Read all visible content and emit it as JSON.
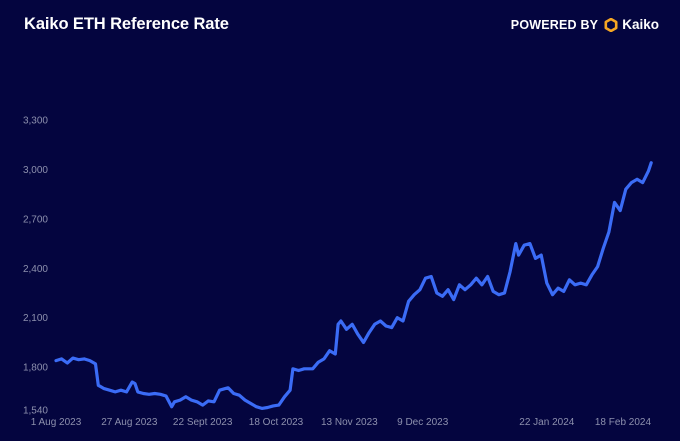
{
  "header": {
    "title": "Kaiko ETH Reference Rate",
    "powered_label": "POWERED BY",
    "brand_name": "Kaiko",
    "brand_color": "#f5a623"
  },
  "chart_data": {
    "type": "line",
    "title": "Kaiko ETH Reference Rate",
    "xlabel": "",
    "ylabel": "",
    "grid": false,
    "legend": "none",
    "line_color": "#3b6cf6",
    "ylim": [
      1540,
      3300
    ],
    "xlim": [
      "2023-08-01",
      "2024-02-29"
    ],
    "y_ticks": [
      1540,
      1800,
      2100,
      2400,
      2700,
      3000,
      3300
    ],
    "y_tick_labels": [
      "1,540",
      "1,800",
      "2,100",
      "2,400",
      "2,700",
      "3,000",
      "3,300"
    ],
    "x_ticks": [
      "2023-08-01",
      "2023-08-27",
      "2023-09-22",
      "2023-10-18",
      "2023-11-13",
      "2023-12-09",
      "2024-01-22",
      "2024-02-18"
    ],
    "x_tick_labels": [
      "1 Aug 2023",
      "27 Aug 2023",
      "22 Sept 2023",
      "18 Oct 2023",
      "13 Nov 2023",
      "9 Dec 2023",
      "22 Jan 2024",
      "18 Feb 2024"
    ],
    "series": [
      {
        "x": [
          "2023-08-01",
          "2023-08-03",
          "2023-08-05",
          "2023-08-07",
          "2023-08-09",
          "2023-08-11",
          "2023-08-13",
          "2023-08-15",
          "2023-08-16",
          "2023-08-17",
          "2023-08-18",
          "2023-08-20",
          "2023-08-22",
          "2023-08-24",
          "2023-08-26",
          "2023-08-28",
          "2023-08-29",
          "2023-08-30",
          "2023-09-01",
          "2023-09-03",
          "2023-09-05",
          "2023-09-07",
          "2023-09-09",
          "2023-09-11",
          "2023-09-12",
          "2023-09-14",
          "2023-09-16",
          "2023-09-18",
          "2023-09-20",
          "2023-09-22",
          "2023-09-24",
          "2023-09-26",
          "2023-09-28",
          "2023-09-30",
          "2023-10-01",
          "2023-10-03",
          "2023-10-05",
          "2023-10-07",
          "2023-10-09",
          "2023-10-11",
          "2023-10-13",
          "2023-10-15",
          "2023-10-17",
          "2023-10-19",
          "2023-10-21",
          "2023-10-23",
          "2023-10-24",
          "2023-10-26",
          "2023-10-28",
          "2023-10-31",
          "2023-11-02",
          "2023-11-04",
          "2023-11-06",
          "2023-11-08",
          "2023-11-09",
          "2023-11-10",
          "2023-11-12",
          "2023-11-14",
          "2023-11-16",
          "2023-11-18",
          "2023-11-20",
          "2023-11-22",
          "2023-11-24",
          "2023-11-26",
          "2023-11-28",
          "2023-11-30",
          "2023-12-02",
          "2023-12-04",
          "2023-12-06",
          "2023-12-08",
          "2023-12-10",
          "2023-12-12",
          "2023-12-14",
          "2023-12-16",
          "2023-12-18",
          "2023-12-20",
          "2023-12-22",
          "2023-12-24",
          "2023-12-26",
          "2023-12-28",
          "2023-12-30",
          "2024-01-01",
          "2024-01-03",
          "2024-01-05",
          "2024-01-07",
          "2024-01-09",
          "2024-01-11",
          "2024-01-12",
          "2024-01-14",
          "2024-01-16",
          "2024-01-18",
          "2024-01-20",
          "2024-01-22",
          "2024-01-24",
          "2024-01-26",
          "2024-01-28",
          "2024-01-30",
          "2024-02-01",
          "2024-02-03",
          "2024-02-05",
          "2024-02-07",
          "2024-02-09",
          "2024-02-11",
          "2024-02-13",
          "2024-02-15",
          "2024-02-17",
          "2024-02-19",
          "2024-02-21",
          "2024-02-23",
          "2024-02-25",
          "2024-02-27",
          "2024-02-28"
        ],
        "values": [
          1840,
          1850,
          1825,
          1855,
          1845,
          1850,
          1840,
          1820,
          1690,
          1680,
          1670,
          1660,
          1650,
          1660,
          1650,
          1710,
          1700,
          1650,
          1640,
          1635,
          1640,
          1635,
          1625,
          1560,
          1590,
          1600,
          1620,
          1600,
          1590,
          1570,
          1595,
          1590,
          1660,
          1670,
          1675,
          1640,
          1630,
          1600,
          1580,
          1560,
          1550,
          1555,
          1565,
          1570,
          1620,
          1660,
          1790,
          1780,
          1790,
          1790,
          1830,
          1850,
          1900,
          1880,
          2060,
          2080,
          2030,
          2060,
          2000,
          1950,
          2010,
          2060,
          2080,
          2050,
          2040,
          2100,
          2080,
          2200,
          2240,
          2270,
          2340,
          2350,
          2250,
          2230,
          2270,
          2210,
          2300,
          2270,
          2300,
          2340,
          2300,
          2350,
          2260,
          2240,
          2250,
          2380,
          2550,
          2480,
          2540,
          2550,
          2460,
          2480,
          2310,
          2240,
          2280,
          2260,
          2330,
          2300,
          2310,
          2300,
          2360,
          2410,
          2520,
          2620,
          2800,
          2750,
          2880,
          2920,
          2940,
          2920,
          2990,
          3040
        ]
      }
    ]
  }
}
